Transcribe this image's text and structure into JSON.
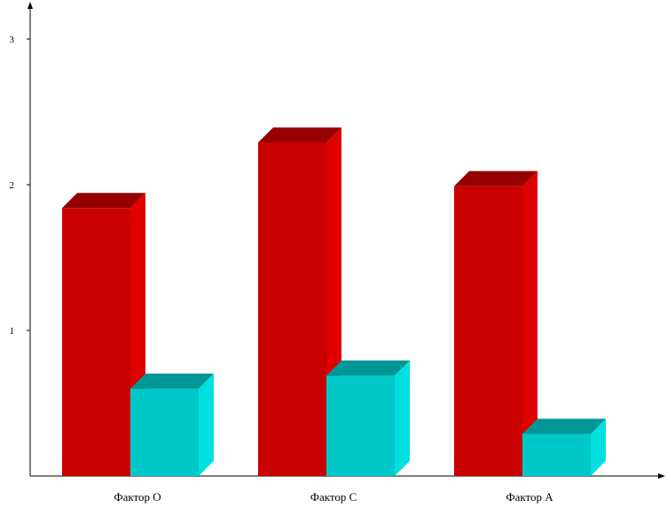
{
  "chart_data": {
    "type": "bar",
    "style": "3d-clustered",
    "categories": [
      "Фактор O",
      "Фактор C",
      "Фактор A"
    ],
    "series": [
      {
        "values": [
          1.84,
          2.29,
          1.99
        ],
        "color": "#c80000",
        "side_color": "#e00000",
        "top_color": "#960000"
      },
      {
        "values": [
          0.6,
          0.69,
          0.29
        ],
        "color": "#00c8c8",
        "side_color": "#00e0e0",
        "top_color": "#009696"
      }
    ],
    "y_ticks": [
      "1",
      "2",
      "3"
    ],
    "ylim": [
      0,
      3
    ],
    "grid": false,
    "legend": "none",
    "title": "",
    "xlabel": "",
    "ylabel": ""
  }
}
